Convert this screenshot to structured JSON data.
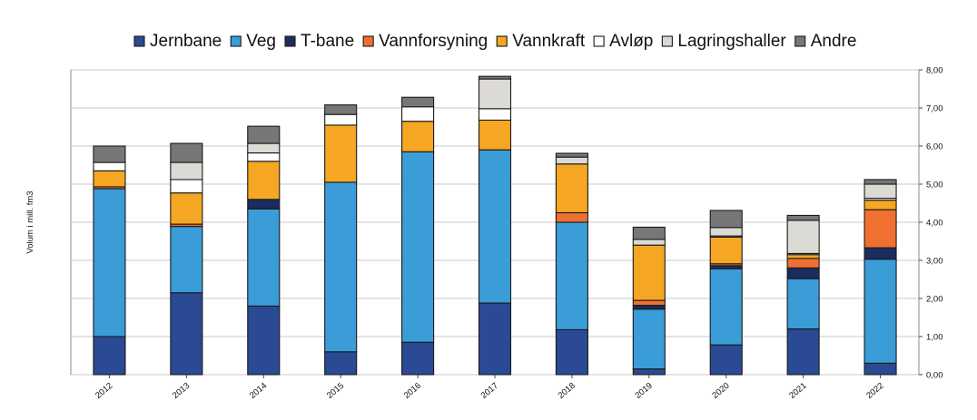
{
  "chart_data": {
    "type": "bar",
    "stacked": true,
    "categories": [
      "2012",
      "2013",
      "2014",
      "2015",
      "2016",
      "2017",
      "2018",
      "2019",
      "2020",
      "2021",
      "2022"
    ],
    "series": [
      {
        "name": "Jernbane",
        "color": "#2a4a94",
        "values": [
          1.0,
          2.15,
          1.8,
          0.6,
          0.85,
          1.88,
          1.18,
          0.15,
          0.78,
          1.2,
          0.3
        ]
      },
      {
        "name": "Veg",
        "color": "#3a9dd8",
        "values": [
          3.88,
          1.74,
          2.55,
          4.45,
          5.0,
          4.02,
          2.82,
          1.57,
          2.0,
          1.32,
          2.73
        ]
      },
      {
        "name": "T-bane",
        "color": "#1d2c5e",
        "values": [
          0.0,
          0.0,
          0.25,
          0.0,
          0.0,
          0.0,
          0.0,
          0.1,
          0.08,
          0.28,
          0.3
        ]
      },
      {
        "name": "Vannforsyning",
        "color": "#ef7030",
        "values": [
          0.05,
          0.06,
          0.0,
          0.0,
          0.0,
          0.0,
          0.25,
          0.13,
          0.05,
          0.25,
          1.0
        ]
      },
      {
        "name": "Vannkraft",
        "color": "#f5a623",
        "values": [
          0.42,
          0.82,
          1.0,
          1.5,
          0.8,
          0.78,
          1.28,
          1.45,
          0.7,
          0.1,
          0.25
        ]
      },
      {
        "name": "Avløp",
        "color": "#ffffff",
        "values": [
          0.22,
          0.35,
          0.22,
          0.28,
          0.38,
          0.3,
          0.0,
          0.0,
          0.03,
          0.03,
          0.05
        ]
      },
      {
        "name": "Lagringshaller",
        "color": "#dcdad4",
        "values": [
          0.0,
          0.45,
          0.25,
          0.0,
          0.0,
          0.78,
          0.18,
          0.15,
          0.22,
          0.87,
          0.37
        ]
      },
      {
        "name": "Andre",
        "color": "#777777",
        "values": [
          0.43,
          0.5,
          0.45,
          0.25,
          0.25,
          0.07,
          0.1,
          0.32,
          0.45,
          0.13,
          0.12
        ]
      }
    ],
    "xlabel": "",
    "ylabel": "Volum i mill. fm3",
    "ylim": [
      0,
      8
    ],
    "yticks": [
      "0,00",
      "1,00",
      "2,00",
      "3,00",
      "4,00",
      "5,00",
      "6,00",
      "7,00",
      "8,00"
    ],
    "y_axis_side": "right",
    "grid": true,
    "legend_position": "top"
  }
}
